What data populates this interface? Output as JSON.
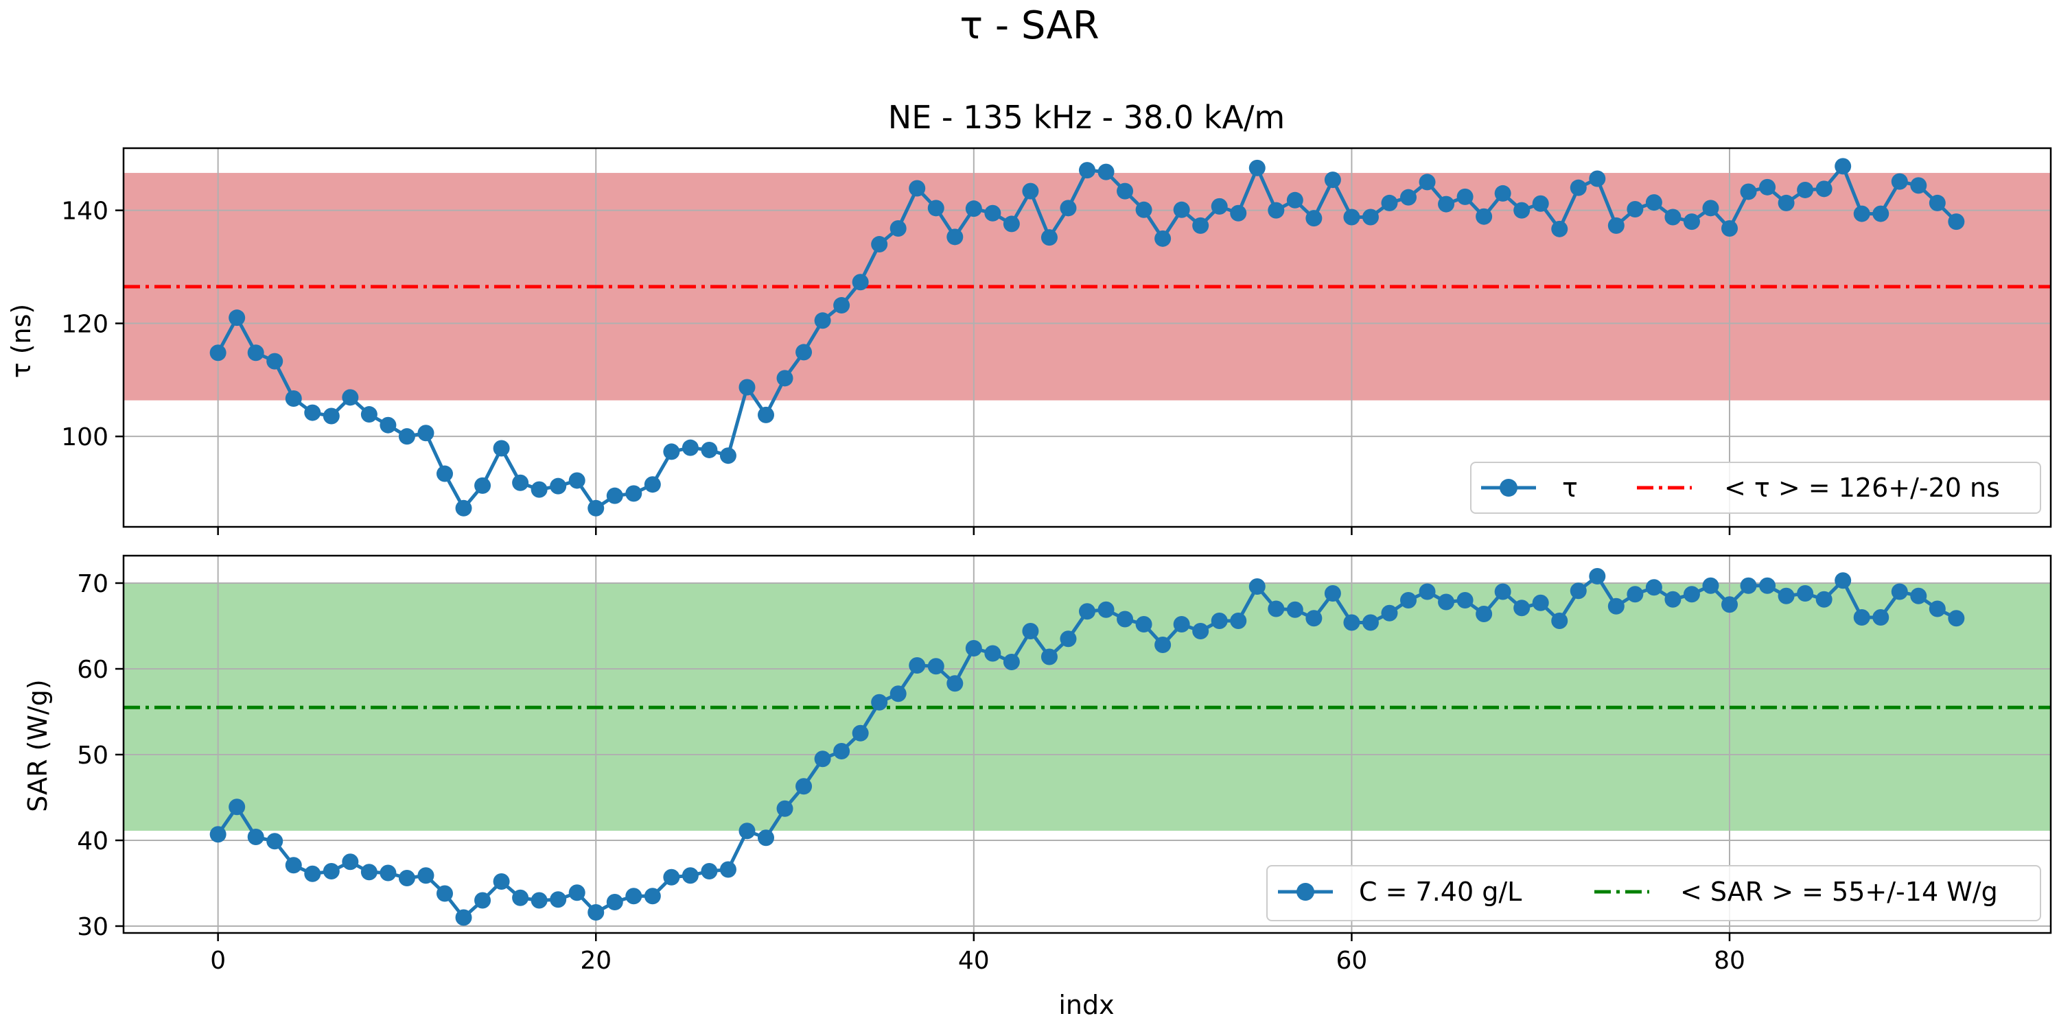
{
  "figure": {
    "suptitle": "τ - SAR",
    "xlabel": "indx"
  },
  "chart_data": [
    {
      "type": "line",
      "title": "NE - 135 kHz - 38.0 kA/m",
      "xlabel": "",
      "ylabel": "τ (ns)",
      "xlim": [
        -5,
        97
      ],
      "ylim": [
        84,
        151
      ],
      "xticks": [
        0,
        20,
        40,
        60,
        80
      ],
      "yticks": [
        100,
        120,
        140
      ],
      "grid": true,
      "legend_position": "lower-right",
      "band": {
        "low": 106.5,
        "high": 146.5,
        "color": "#e9a0a2"
      },
      "mean_line": {
        "value": 126.5,
        "color": "#ff0000",
        "style": "dash-dot",
        "label": "< τ > = 126+/-20 ns"
      },
      "series": [
        {
          "name": "τ",
          "color": "#1f77b4",
          "x": [
            0,
            1,
            2,
            3,
            4,
            5,
            6,
            7,
            8,
            9,
            10,
            11,
            12,
            13,
            14,
            15,
            16,
            17,
            18,
            19,
            20,
            21,
            22,
            23,
            24,
            25,
            26,
            27,
            28,
            29,
            30,
            31,
            32,
            33,
            34,
            35,
            36,
            37,
            38,
            39,
            40,
            41,
            42,
            43,
            44,
            45,
            46,
            47,
            48,
            49,
            50,
            51,
            52,
            53,
            54,
            55,
            56,
            57,
            58,
            59,
            60,
            61,
            62,
            63,
            64,
            65,
            66,
            67,
            68,
            69,
            70,
            71,
            72,
            73,
            74,
            75,
            76,
            77,
            78,
            79,
            80,
            81,
            82,
            83,
            84,
            85,
            86,
            87,
            88,
            89,
            90,
            91,
            92
          ],
          "values": [
            114.8,
            121,
            114.8,
            113.3,
            106.7,
            104.2,
            103.6,
            106.9,
            103.9,
            102,
            100,
            100.6,
            93.4,
            87.3,
            91.3,
            97.9,
            91.8,
            90.6,
            91.2,
            92.2,
            87.3,
            89.5,
            89.9,
            91.5,
            97.3,
            98,
            97.6,
            96.6,
            108.7,
            103.8,
            110.3,
            114.9,
            120.5,
            123.2,
            127.3,
            134,
            136.8,
            143.9,
            140.4,
            135.3,
            140.3,
            139.5,
            137.6,
            143.4,
            135.2,
            140.4,
            147.1,
            146.8,
            143.4,
            140.1,
            135,
            140.1,
            137.3,
            140.7,
            139.5,
            147.5,
            140,
            141.8,
            138.6,
            145.4,
            138.8,
            138.8,
            141.3,
            142.3,
            145,
            141.1,
            142.4,
            138.9,
            143,
            140,
            141.2,
            136.7,
            144,
            145.6,
            137.3,
            140.2,
            141.4,
            138.8,
            138,
            140.4,
            136.8,
            143.3,
            144.1,
            141.3,
            143.6,
            143.8,
            147.8,
            139.4,
            139.4,
            145.1,
            144.4,
            141.3,
            138
          ]
        }
      ]
    },
    {
      "type": "line",
      "title": "",
      "xlabel": "indx",
      "ylabel": "SAR (W/g)",
      "xlim": [
        -5,
        97
      ],
      "ylim": [
        29.2,
        73.2
      ],
      "xticks": [
        0,
        20,
        40,
        60,
        80
      ],
      "yticks": [
        30,
        40,
        50,
        60,
        70
      ],
      "grid": true,
      "legend_position": "lower-right",
      "band": {
        "low": 41.2,
        "high": 70,
        "color": "#a9dba9"
      },
      "mean_line": {
        "value": 55.5,
        "color": "#008000",
        "style": "dash-dot",
        "label": "< SAR > = 55+/-14 W/g"
      },
      "series": [
        {
          "name": "C = 7.40 g/L",
          "color": "#1f77b4",
          "x": [
            0,
            1,
            2,
            3,
            4,
            5,
            6,
            7,
            8,
            9,
            10,
            11,
            12,
            13,
            14,
            15,
            16,
            17,
            18,
            19,
            20,
            21,
            22,
            23,
            24,
            25,
            26,
            27,
            28,
            29,
            30,
            31,
            32,
            33,
            34,
            35,
            36,
            37,
            38,
            39,
            40,
            41,
            42,
            43,
            44,
            45,
            46,
            47,
            48,
            49,
            50,
            51,
            52,
            53,
            54,
            55,
            56,
            57,
            58,
            59,
            60,
            61,
            62,
            63,
            64,
            65,
            66,
            67,
            68,
            69,
            70,
            71,
            72,
            73,
            74,
            75,
            76,
            77,
            78,
            79,
            80,
            81,
            82,
            83,
            84,
            85,
            86,
            87,
            88,
            89,
            90,
            91,
            92
          ],
          "values": [
            40.7,
            43.9,
            40.4,
            39.9,
            37.1,
            36.1,
            36.4,
            37.5,
            36.3,
            36.2,
            35.6,
            35.9,
            33.8,
            31,
            33,
            35.2,
            33.3,
            33,
            33.1,
            33.9,
            31.6,
            32.8,
            33.5,
            33.5,
            35.7,
            35.9,
            36.4,
            36.6,
            41.1,
            40.3,
            43.7,
            46.3,
            49.5,
            50.4,
            52.5,
            56.1,
            57.1,
            60.4,
            60.3,
            58.3,
            62.4,
            61.8,
            60.8,
            64.4,
            61.4,
            63.5,
            66.7,
            66.9,
            65.8,
            65.2,
            62.8,
            65.2,
            64.4,
            65.6,
            65.6,
            69.6,
            67,
            66.9,
            65.9,
            68.8,
            65.4,
            65.4,
            66.5,
            68,
            69,
            67.8,
            68,
            66.4,
            69,
            67.1,
            67.7,
            65.6,
            69.1,
            70.8,
            67.3,
            68.7,
            69.5,
            68.1,
            68.7,
            69.7,
            67.5,
            69.7,
            69.7,
            68.5,
            68.8,
            68.1,
            70.3,
            66,
            66,
            69,
            68.5,
            67,
            65.9
          ]
        }
      ]
    }
  ]
}
